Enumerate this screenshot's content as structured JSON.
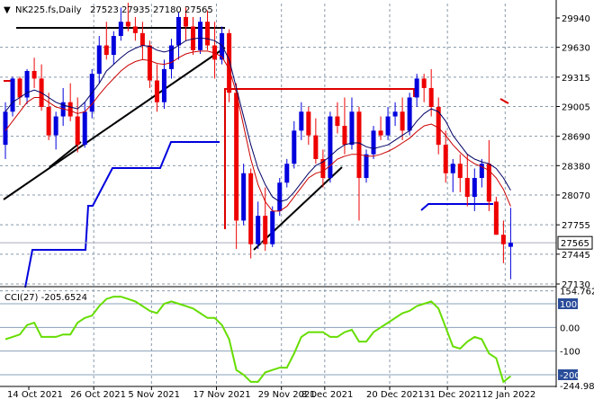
{
  "header": {
    "symbol": "NK225.fs,Daily",
    "ohlc": "27523 27935 27180 27565"
  },
  "cci_label": "CCI(27) -205.6524",
  "price_axis": {
    "ticks": [
      "29940",
      "29630",
      "29315",
      "29005",
      "28690",
      "28380",
      "28070",
      "27755",
      "27445",
      "27130"
    ],
    "current_price_label": "27565"
  },
  "cci_axis": {
    "ticks": [
      "154.7623",
      "100",
      "0.00",
      "-100",
      "-200",
      "-244.983"
    ]
  },
  "time_axis": {
    "ticks": [
      "14 Oct 2021",
      "26 Oct 2021",
      "5 Nov 2021",
      "17 Nov 2021",
      "29 Nov 2021",
      "8 Dec 2021",
      "20 Dec 2021",
      "31 Dec 2021",
      "12 Jan 2022"
    ]
  },
  "colors": {
    "bull": "#0000dd",
    "bear": "#ee0000",
    "cci_line": "#66dd00",
    "ma_fast": "#000066",
    "ma_slow": "#cc0000",
    "trendline": "#000000",
    "resistance": "#dd0000",
    "support": "#0000dd",
    "grid": "#8899aa"
  },
  "chart_data": [
    {
      "type": "candlestick",
      "title": "NK225.fs,Daily",
      "ylim": [
        26980,
        30190
      ],
      "yticks": [
        29940,
        29630,
        29315,
        29005,
        28690,
        28380,
        28070,
        27755,
        27445,
        27130
      ],
      "current_price": 27565,
      "series": [
        {
          "name": "NK225.fs,Daily",
          "ohlc": [
            [
              28600,
              29050,
              28450,
              28950
            ],
            [
              28950,
              29320,
              28900,
              29300
            ],
            [
              29300,
              29320,
              29020,
              29100
            ],
            [
              29100,
              29400,
              29030,
              29380
            ],
            [
              29380,
              29520,
              29200,
              29300
            ],
            [
              29300,
              29450,
              28960,
              29000
            ],
            [
              29000,
              29150,
              28650,
              28700
            ],
            [
              28700,
              28950,
              28550,
              28900
            ],
            [
              28900,
              29200,
              28800,
              29050
            ],
            [
              29050,
              29250,
              28850,
              28900
            ],
            [
              28900,
              29100,
              28520,
              28600
            ],
            [
              28600,
              29050,
              28570,
              28950
            ],
            [
              28950,
              29400,
              28880,
              29350
            ],
            [
              29350,
              29750,
              29250,
              29650
            ],
            [
              29650,
              29900,
              29500,
              29550
            ],
            [
              29550,
              29800,
              29450,
              29750
            ],
            [
              29750,
              30050,
              29700,
              29900
            ],
            [
              29900,
              30100,
              29800,
              29850
            ],
            [
              29850,
              29950,
              29700,
              29780
            ],
            [
              29780,
              29900,
              29500,
              29650
            ],
            [
              29650,
              29700,
              29200,
              29280
            ],
            [
              29280,
              29450,
              28950,
              29050
            ],
            [
              29050,
              29500,
              28980,
              29400
            ],
            [
              29400,
              29720,
              29300,
              29650
            ],
            [
              29650,
              30000,
              29500,
              29950
            ],
            [
              29950,
              30050,
              29700,
              29850
            ],
            [
              29850,
              29950,
              29550,
              29600
            ],
            [
              29600,
              29950,
              29560,
              29900
            ],
            [
              29900,
              30020,
              29600,
              29650
            ],
            [
              29650,
              29900,
              29300,
              29500
            ],
            [
              29500,
              29850,
              29450,
              29780
            ],
            [
              29780,
              29820,
              29050,
              29150
            ],
            [
              29150,
              29250,
              27500,
              27800
            ],
            [
              27800,
              28400,
              27750,
              28300
            ],
            [
              28300,
              28350,
              27400,
              27550
            ],
            [
              27550,
              28000,
              27500,
              27850
            ],
            [
              27850,
              28150,
              27480,
              27550
            ],
            [
              27550,
              27950,
              27520,
              27900
            ],
            [
              27900,
              28250,
              27850,
              28200
            ],
            [
              28200,
              28450,
              28150,
              28400
            ],
            [
              28400,
              28850,
              28350,
              28750
            ],
            [
              28750,
              29050,
              28650,
              28950
            ],
            [
              28950,
              29000,
              28600,
              28700
            ],
            [
              28700,
              28880,
              28400,
              28450
            ],
            [
              28450,
              28550,
              28150,
              28250
            ],
            [
              28250,
              28950,
              28200,
              28900
            ],
            [
              28900,
              29050,
              28720,
              28800
            ],
            [
              28800,
              29100,
              28500,
              28600
            ],
            [
              28600,
              29100,
              28550,
              28950
            ],
            [
              28950,
              29000,
              27800,
              28250
            ],
            [
              28250,
              28550,
              28200,
              28500
            ],
            [
              28500,
              28800,
              28450,
              28750
            ],
            [
              28750,
              28900,
              28650,
              28700
            ],
            [
              28700,
              29000,
              28650,
              28900
            ],
            [
              28900,
              29050,
              28800,
              28950
            ],
            [
              28950,
              29100,
              28650,
              28750
            ],
            [
              28750,
              29150,
              28700,
              29100
            ],
            [
              29100,
              29350,
              29000,
              29300
            ],
            [
              29300,
              29350,
              29050,
              29200
            ],
            [
              29200,
              29400,
              28900,
              29000
            ],
            [
              29000,
              29100,
              28500,
              28600
            ],
            [
              28600,
              28750,
              28200,
              28300
            ],
            [
              28300,
              28450,
              28100,
              28400
            ],
            [
              28400,
              28500,
              28100,
              28250
            ],
            [
              28250,
              28500,
              27950,
              28050
            ],
            [
              28050,
              28350,
              27900,
              28250
            ],
            [
              28250,
              28450,
              28150,
              28400
            ],
            [
              28400,
              28650,
              27900,
              28000
            ],
            [
              28000,
              28050,
              27650,
              27650
            ],
            [
              27650,
              27800,
              27350,
              27550
            ],
            [
              27523,
              27935,
              27180,
              27565
            ]
          ]
        },
        {
          "name": "",
          "values": [
            28950,
            29050,
            29100,
            29150,
            29180,
            29150,
            29100,
            29050,
            29020,
            29000,
            28980,
            29050,
            29150,
            29250,
            29380,
            29450,
            29520,
            29580,
            29620,
            29650,
            29640,
            29600,
            29580,
            29600,
            29650,
            29700,
            29720,
            29730,
            29720,
            29700,
            29650,
            29500,
            29200,
            28900,
            28600,
            28350,
            28180,
            28050,
            28000,
            28020,
            28100,
            28200,
            28300,
            28380,
            28420,
            28480,
            28550,
            28600,
            28620,
            28620,
            28580,
            28560,
            28580,
            28600,
            28650,
            28700,
            28750,
            28850,
            28930,
            28980,
            28950,
            28850,
            28700,
            28600,
            28500,
            28450,
            28420,
            28400,
            28350,
            28250,
            28120
          ]
        },
        {
          "name": "",
          "values": [
            28750,
            28850,
            28950,
            29050,
            29100,
            29100,
            29050,
            29000,
            28980,
            28960,
            28930,
            28950,
            29030,
            29130,
            29220,
            29300,
            29380,
            29440,
            29480,
            29500,
            29490,
            29460,
            29450,
            29470,
            29520,
            29560,
            29580,
            29590,
            29590,
            29570,
            29530,
            29400,
            29150,
            28800,
            28450,
            28180,
            28000,
            27900,
            27900,
            27950,
            28050,
            28150,
            28250,
            28300,
            28320,
            28380,
            28450,
            28480,
            28500,
            28500,
            28480,
            28480,
            28500,
            28530,
            28570,
            28620,
            28670,
            28740,
            28800,
            28820,
            28780,
            28700,
            28600,
            28520,
            28450,
            28400,
            28370,
            28330,
            28250,
            28130,
            27950
          ]
        }
      ]
    },
    {
      "type": "line",
      "title": "CCI(27) -205.6524",
      "ylim": [
        -244.983,
        154.7623
      ],
      "yticks": [
        154.7623,
        100,
        0.0,
        -100,
        -200,
        -244.983
      ],
      "series": [
        {
          "name": "CCI(27)",
          "values": [
            -50,
            -40,
            -30,
            10,
            20,
            -40,
            -40,
            -40,
            -30,
            -30,
            20,
            40,
            50,
            90,
            120,
            130,
            130,
            120,
            110,
            90,
            70,
            60,
            100,
            110,
            100,
            90,
            80,
            60,
            40,
            40,
            10,
            -50,
            -180,
            -200,
            -230,
            -230,
            -190,
            -180,
            -170,
            -170,
            -110,
            -40,
            -20,
            -20,
            -20,
            -40,
            -40,
            -20,
            -10,
            -60,
            -60,
            -20,
            0,
            20,
            40,
            60,
            70,
            90,
            100,
            110,
            80,
            0,
            -80,
            -90,
            -60,
            -40,
            -50,
            -110,
            -130,
            -230,
            -205.6524
          ]
        }
      ]
    }
  ]
}
